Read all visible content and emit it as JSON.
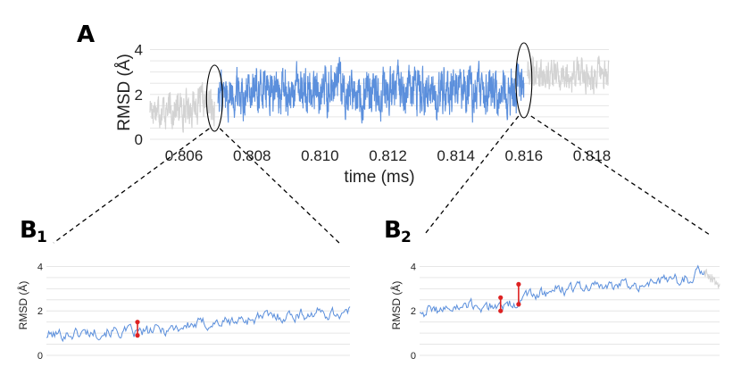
{
  "panels": {
    "a_label": "A",
    "b1_label": "B",
    "b1_sub": "1",
    "b2_label": "B",
    "b2_sub": "2"
  },
  "colors": {
    "series_selected": "#5b8fdc",
    "series_context": "#d3d3d3",
    "transition_marker": "#dd2222",
    "grid": "#e6e6e6"
  },
  "chart_data": [
    {
      "id": "A",
      "type": "line",
      "xlabel": "time (ms)",
      "ylabel": "RMSD (Å)",
      "xlim": [
        0.805,
        0.8185
      ],
      "ylim": [
        0,
        4.5
      ],
      "xticks": [
        0.806,
        0.808,
        0.81,
        0.812,
        0.814,
        0.816,
        0.818
      ],
      "xtick_labels": [
        "0.806",
        "0.808",
        "0.810",
        "0.812",
        "0.814",
        "0.816",
        "0.818"
      ],
      "yticks": [
        0,
        2,
        4
      ],
      "ytick_labels": [
        "0",
        "2",
        "4"
      ],
      "grid": true,
      "series": [
        {
          "role": "context",
          "x": [
            0.805,
            0.8055,
            0.806,
            0.8065,
            0.8069
          ],
          "y": [
            1.5,
            1.3,
            1.4,
            1.6,
            1.5
          ]
        },
        {
          "role": "selected",
          "x": [
            0.807,
            0.808,
            0.809,
            0.81,
            0.811,
            0.812,
            0.813,
            0.814,
            0.815,
            0.816
          ],
          "y": [
            2.0,
            2.2,
            2.1,
            2.3,
            2.2,
            2.2,
            2.1,
            2.2,
            2.1,
            2.2
          ]
        },
        {
          "role": "context",
          "x": [
            0.8161,
            0.817,
            0.818,
            0.8185
          ],
          "y": [
            3.1,
            2.9,
            2.9,
            2.8
          ]
        }
      ],
      "highlight_regions_x": [
        0.8069,
        0.816
      ]
    },
    {
      "id": "B1",
      "type": "line",
      "xlabel": "",
      "ylabel": "RMSD (Å)",
      "ylim": [
        0,
        4.5
      ],
      "yticks": [
        0,
        2,
        4
      ],
      "ytick_labels": [
        "0",
        "2",
        "4"
      ],
      "grid": true,
      "series": [
        {
          "role": "selected",
          "x": [
            0,
            0.1,
            0.2,
            0.3,
            0.4,
            0.5,
            0.6,
            0.7,
            0.8,
            0.9,
            1.0
          ],
          "y": [
            0.9,
            1.0,
            1.1,
            1.0,
            1.2,
            1.4,
            1.5,
            1.7,
            1.8,
            1.9,
            1.9
          ]
        }
      ],
      "transition_points": [
        {
          "x": 0.3,
          "y": 0.9
        },
        {
          "x": 0.3,
          "y": 1.5
        }
      ]
    },
    {
      "id": "B2",
      "type": "line",
      "xlabel": "",
      "ylabel": "RMSD (Å)",
      "ylim": [
        0,
        4.5
      ],
      "yticks": [
        0,
        2,
        4
      ],
      "ytick_labels": [
        "0",
        "2",
        "4"
      ],
      "grid": true,
      "series": [
        {
          "role": "selected",
          "x": [
            0,
            0.1,
            0.2,
            0.3,
            0.4,
            0.5,
            0.6,
            0.7,
            0.8,
            0.9,
            0.95
          ],
          "y": [
            2.0,
            2.1,
            2.2,
            2.3,
            2.8,
            3.0,
            3.1,
            3.2,
            3.3,
            3.5,
            3.9
          ]
        },
        {
          "role": "context",
          "x": [
            0.95,
            1.0
          ],
          "y": [
            3.9,
            3.0
          ]
        }
      ],
      "transition_points": [
        {
          "x": 0.27,
          "y": 2.0
        },
        {
          "x": 0.27,
          "y": 2.6
        },
        {
          "x": 0.33,
          "y": 2.3
        },
        {
          "x": 0.33,
          "y": 3.2
        }
      ]
    }
  ]
}
